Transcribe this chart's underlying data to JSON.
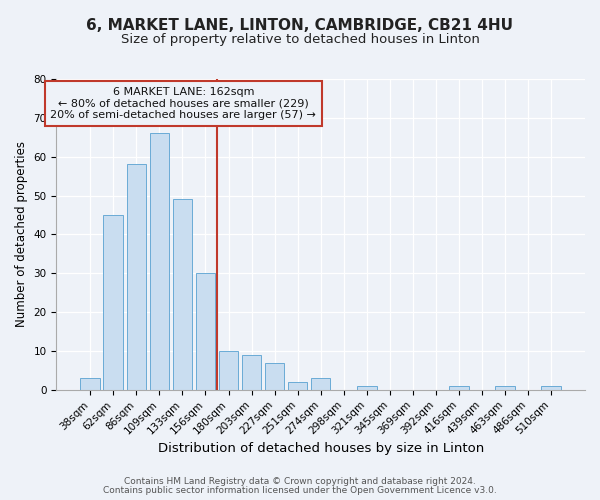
{
  "title": "6, MARKET LANE, LINTON, CAMBRIDGE, CB21 4HU",
  "subtitle": "Size of property relative to detached houses in Linton",
  "xlabel": "Distribution of detached houses by size in Linton",
  "ylabel": "Number of detached properties",
  "bar_labels": [
    "38sqm",
    "62sqm",
    "86sqm",
    "109sqm",
    "133sqm",
    "156sqm",
    "180sqm",
    "203sqm",
    "227sqm",
    "251sqm",
    "274sqm",
    "298sqm",
    "321sqm",
    "345sqm",
    "369sqm",
    "392sqm",
    "416sqm",
    "439sqm",
    "463sqm",
    "486sqm",
    "510sqm"
  ],
  "bar_values": [
    3,
    45,
    58,
    66,
    49,
    30,
    10,
    9,
    7,
    2,
    3,
    0,
    1,
    0,
    0,
    0,
    1,
    0,
    1,
    0,
    1
  ],
  "bar_color": "#c9ddf0",
  "bar_edgecolor": "#6aabd6",
  "vline_x": 5.5,
  "vline_color": "#c0392b",
  "annotation_line1": "6 MARKET LANE: 162sqm",
  "annotation_line2": "← 80% of detached houses are smaller (229)",
  "annotation_line3": "20% of semi-detached houses are larger (57) →",
  "annotation_box_edgecolor": "#c0392b",
  "ylim": [
    0,
    80
  ],
  "yticks": [
    0,
    10,
    20,
    30,
    40,
    50,
    60,
    70,
    80
  ],
  "footer1": "Contains HM Land Registry data © Crown copyright and database right 2024.",
  "footer2": "Contains public sector information licensed under the Open Government Licence v3.0.",
  "background_color": "#eef2f8",
  "plot_bg_color": "#eef2f8",
  "grid_color": "#ffffff",
  "title_fontsize": 11,
  "subtitle_fontsize": 9.5,
  "xlabel_fontsize": 9.5,
  "ylabel_fontsize": 8.5,
  "tick_fontsize": 7.5,
  "annotation_fontsize": 8,
  "footer_fontsize": 6.5
}
